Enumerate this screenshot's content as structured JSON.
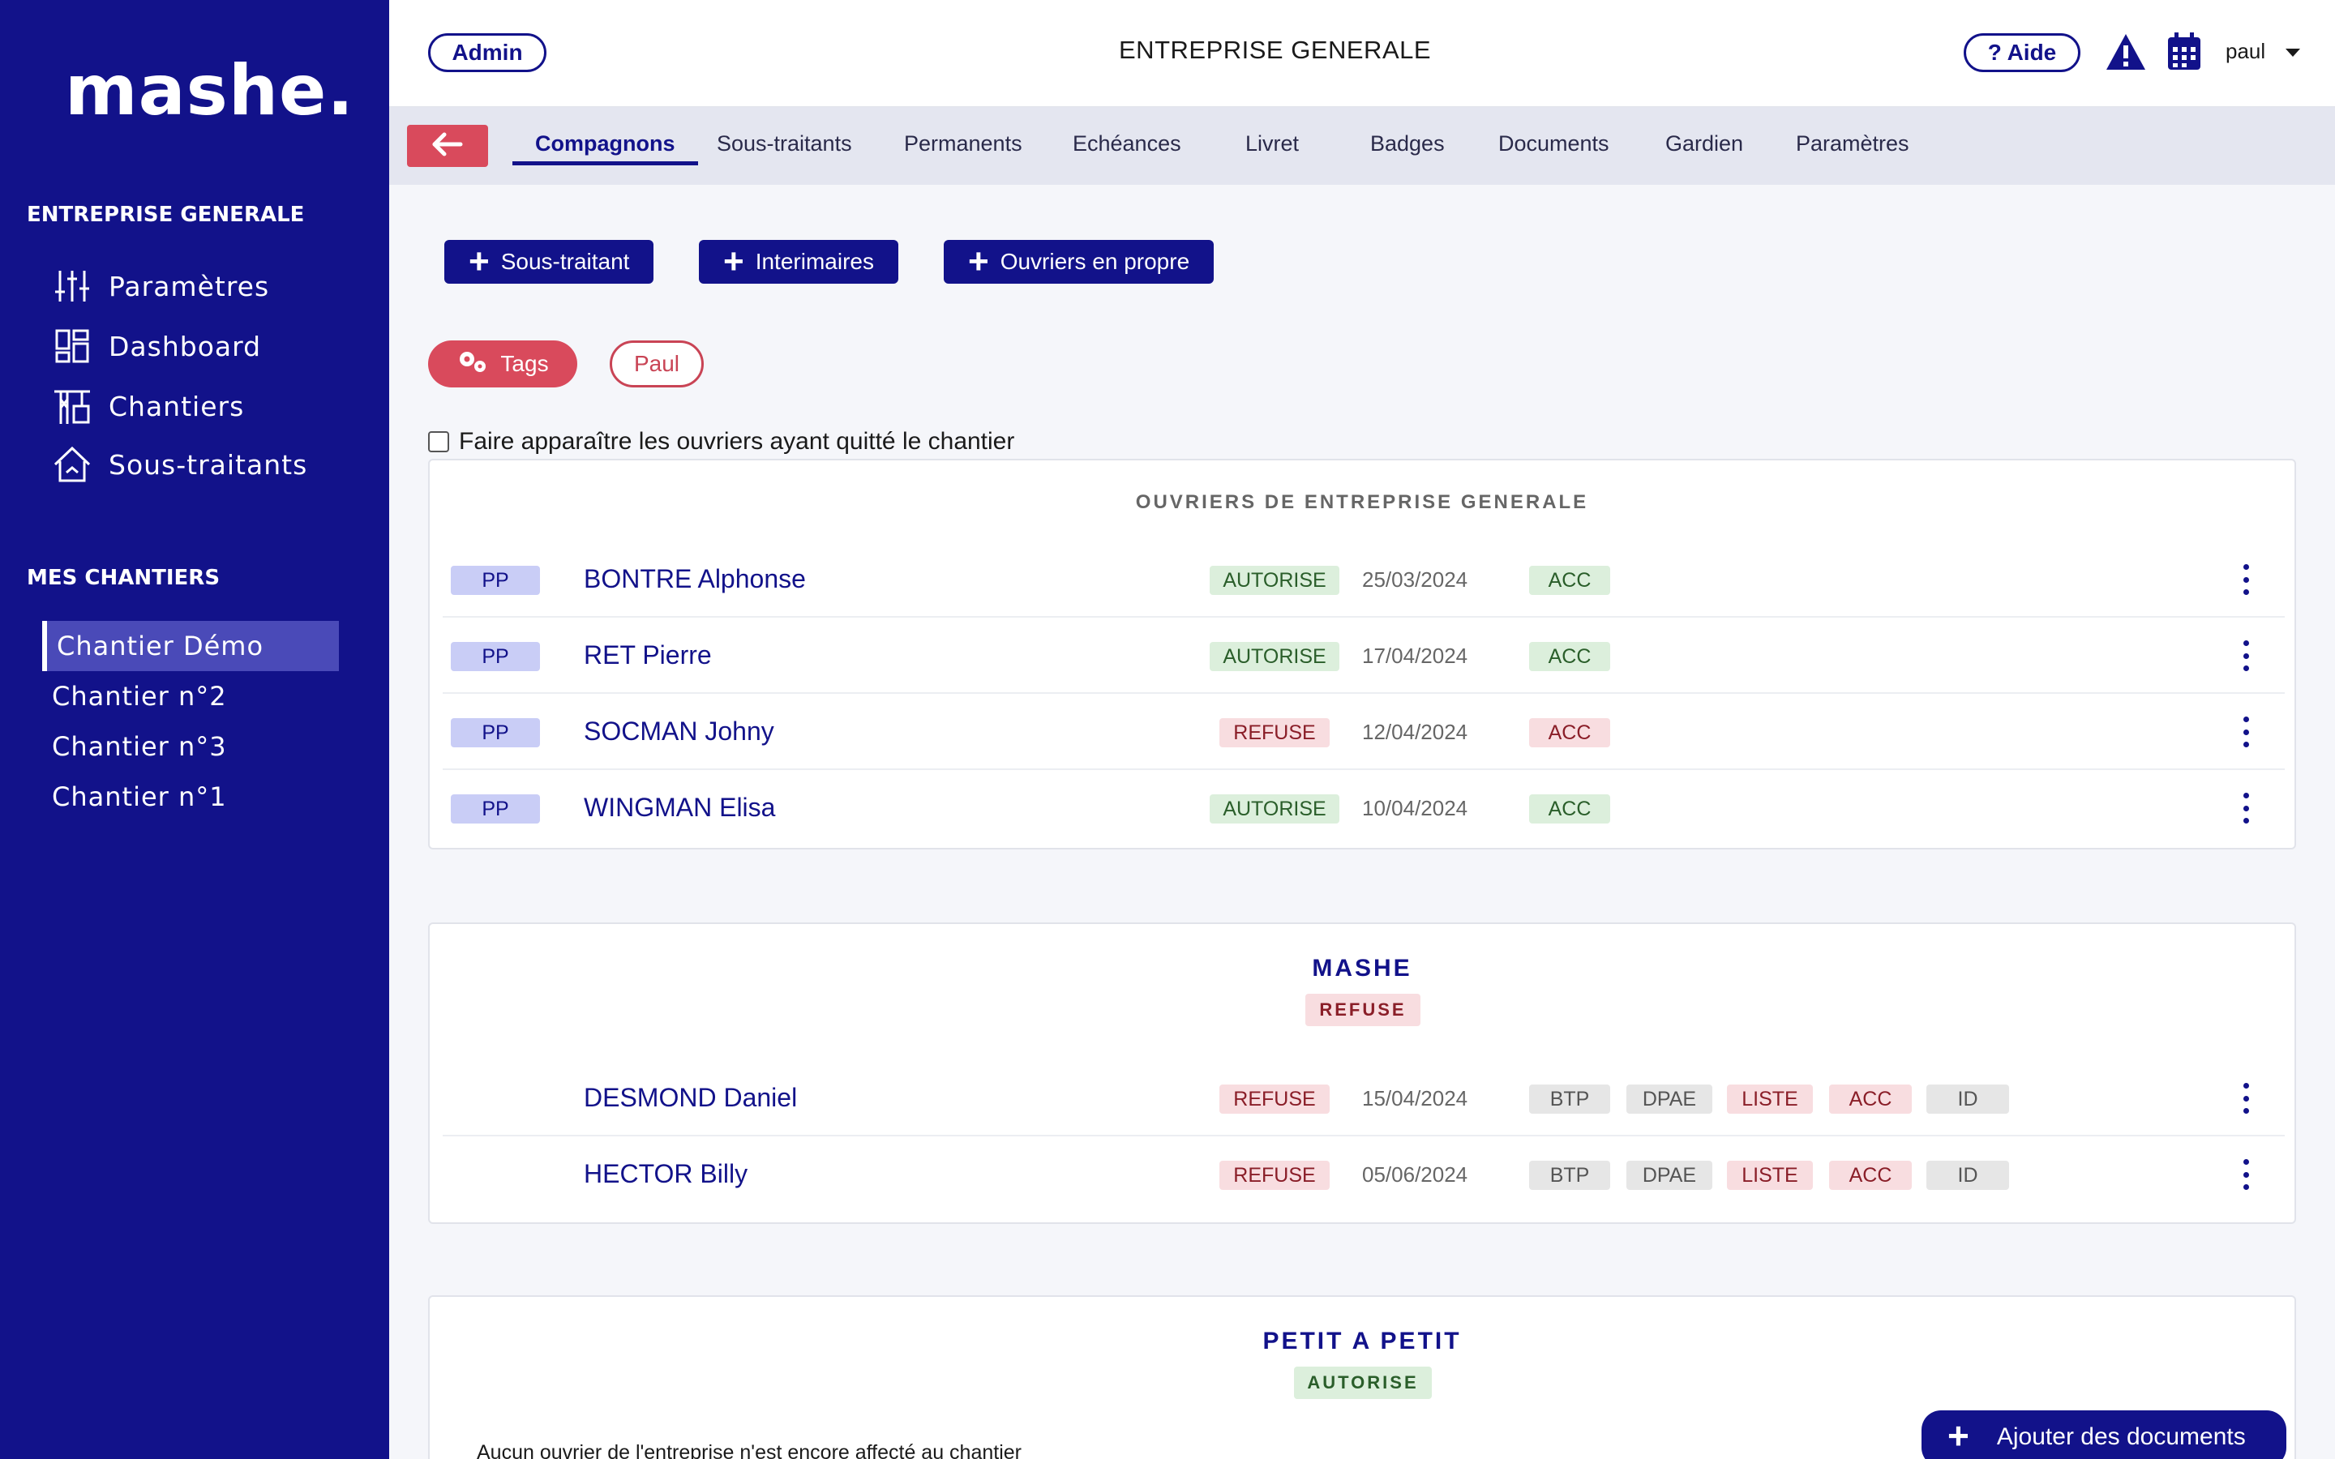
{
  "sidebar": {
    "logo": "mashe.",
    "company": "ENTREPRISE GENERALE",
    "nav": [
      {
        "label": "Paramètres",
        "icon": "sliders-icon"
      },
      {
        "label": "Dashboard",
        "icon": "dashboard-icon"
      },
      {
        "label": "Chantiers",
        "icon": "crane-icon"
      },
      {
        "label": "Sous-traitants",
        "icon": "house-icon"
      }
    ],
    "chantiers_title": "MES CHANTIERS",
    "chantiers": [
      "Chantier Démo",
      "Chantier n°2",
      "Chantier n°3",
      "Chantier n°1"
    ]
  },
  "header": {
    "admin_label": "Admin",
    "title": "ENTREPRISE GENERALE",
    "help_label": "? Aide",
    "user": "paul"
  },
  "tabs": [
    "Compagnons",
    "Sous-traitants",
    "Permanents",
    "Echéances",
    "Livret",
    "Badges",
    "Documents",
    "Gardien",
    "Paramètres"
  ],
  "actions": {
    "add_subcontractor": "Sous-traitant",
    "add_interim": "Interimaires",
    "add_own_workers": "Ouvriers en propre"
  },
  "filters": {
    "tags_label": "Tags",
    "user_tag": "Paul"
  },
  "show_left_label": "Faire apparaître les ouvriers ayant quitté le chantier",
  "groups": {
    "g1": {
      "title": "OUVRIERS DE ENTREPRISE GENERALE",
      "rows": [
        {
          "tag": "PP",
          "name": "BONTRE Alphonse",
          "status": "AUTORISE",
          "date": "25/03/2024",
          "acc": "ACC"
        },
        {
          "tag": "PP",
          "name": "RET Pierre",
          "status": "AUTORISE",
          "date": "17/04/2024",
          "acc": "ACC"
        },
        {
          "tag": "PP",
          "name": "SOCMAN Johny",
          "status": "REFUSE",
          "date": "12/04/2024",
          "acc": "ACC"
        },
        {
          "tag": "PP",
          "name": "WINGMAN Elisa",
          "status": "AUTORISE",
          "date": "10/04/2024",
          "acc": "ACC"
        }
      ]
    },
    "g2": {
      "title": "MASHE",
      "status": "REFUSE",
      "rows": [
        {
          "name": "DESMOND Daniel",
          "status": "REFUSE",
          "date": "15/04/2024",
          "docs": [
            "BTP",
            "DPAE",
            "LISTE",
            "ACC",
            "ID"
          ]
        },
        {
          "name": "HECTOR Billy",
          "status": "REFUSE",
          "date": "05/06/2024",
          "docs": [
            "BTP",
            "DPAE",
            "LISTE",
            "ACC",
            "ID"
          ]
        }
      ]
    },
    "g3": {
      "title": "PETIT A PETIT",
      "status": "AUTORISE",
      "empty": "Aucun ouvrier de l'entreprise n'est encore affecté au chantier"
    }
  },
  "fab_label": "Ajouter des documents",
  "colors": {
    "primary": "#12128a",
    "accent": "#d94a5c",
    "ok": "#dcefdc",
    "ko": "#f8dde0"
  }
}
